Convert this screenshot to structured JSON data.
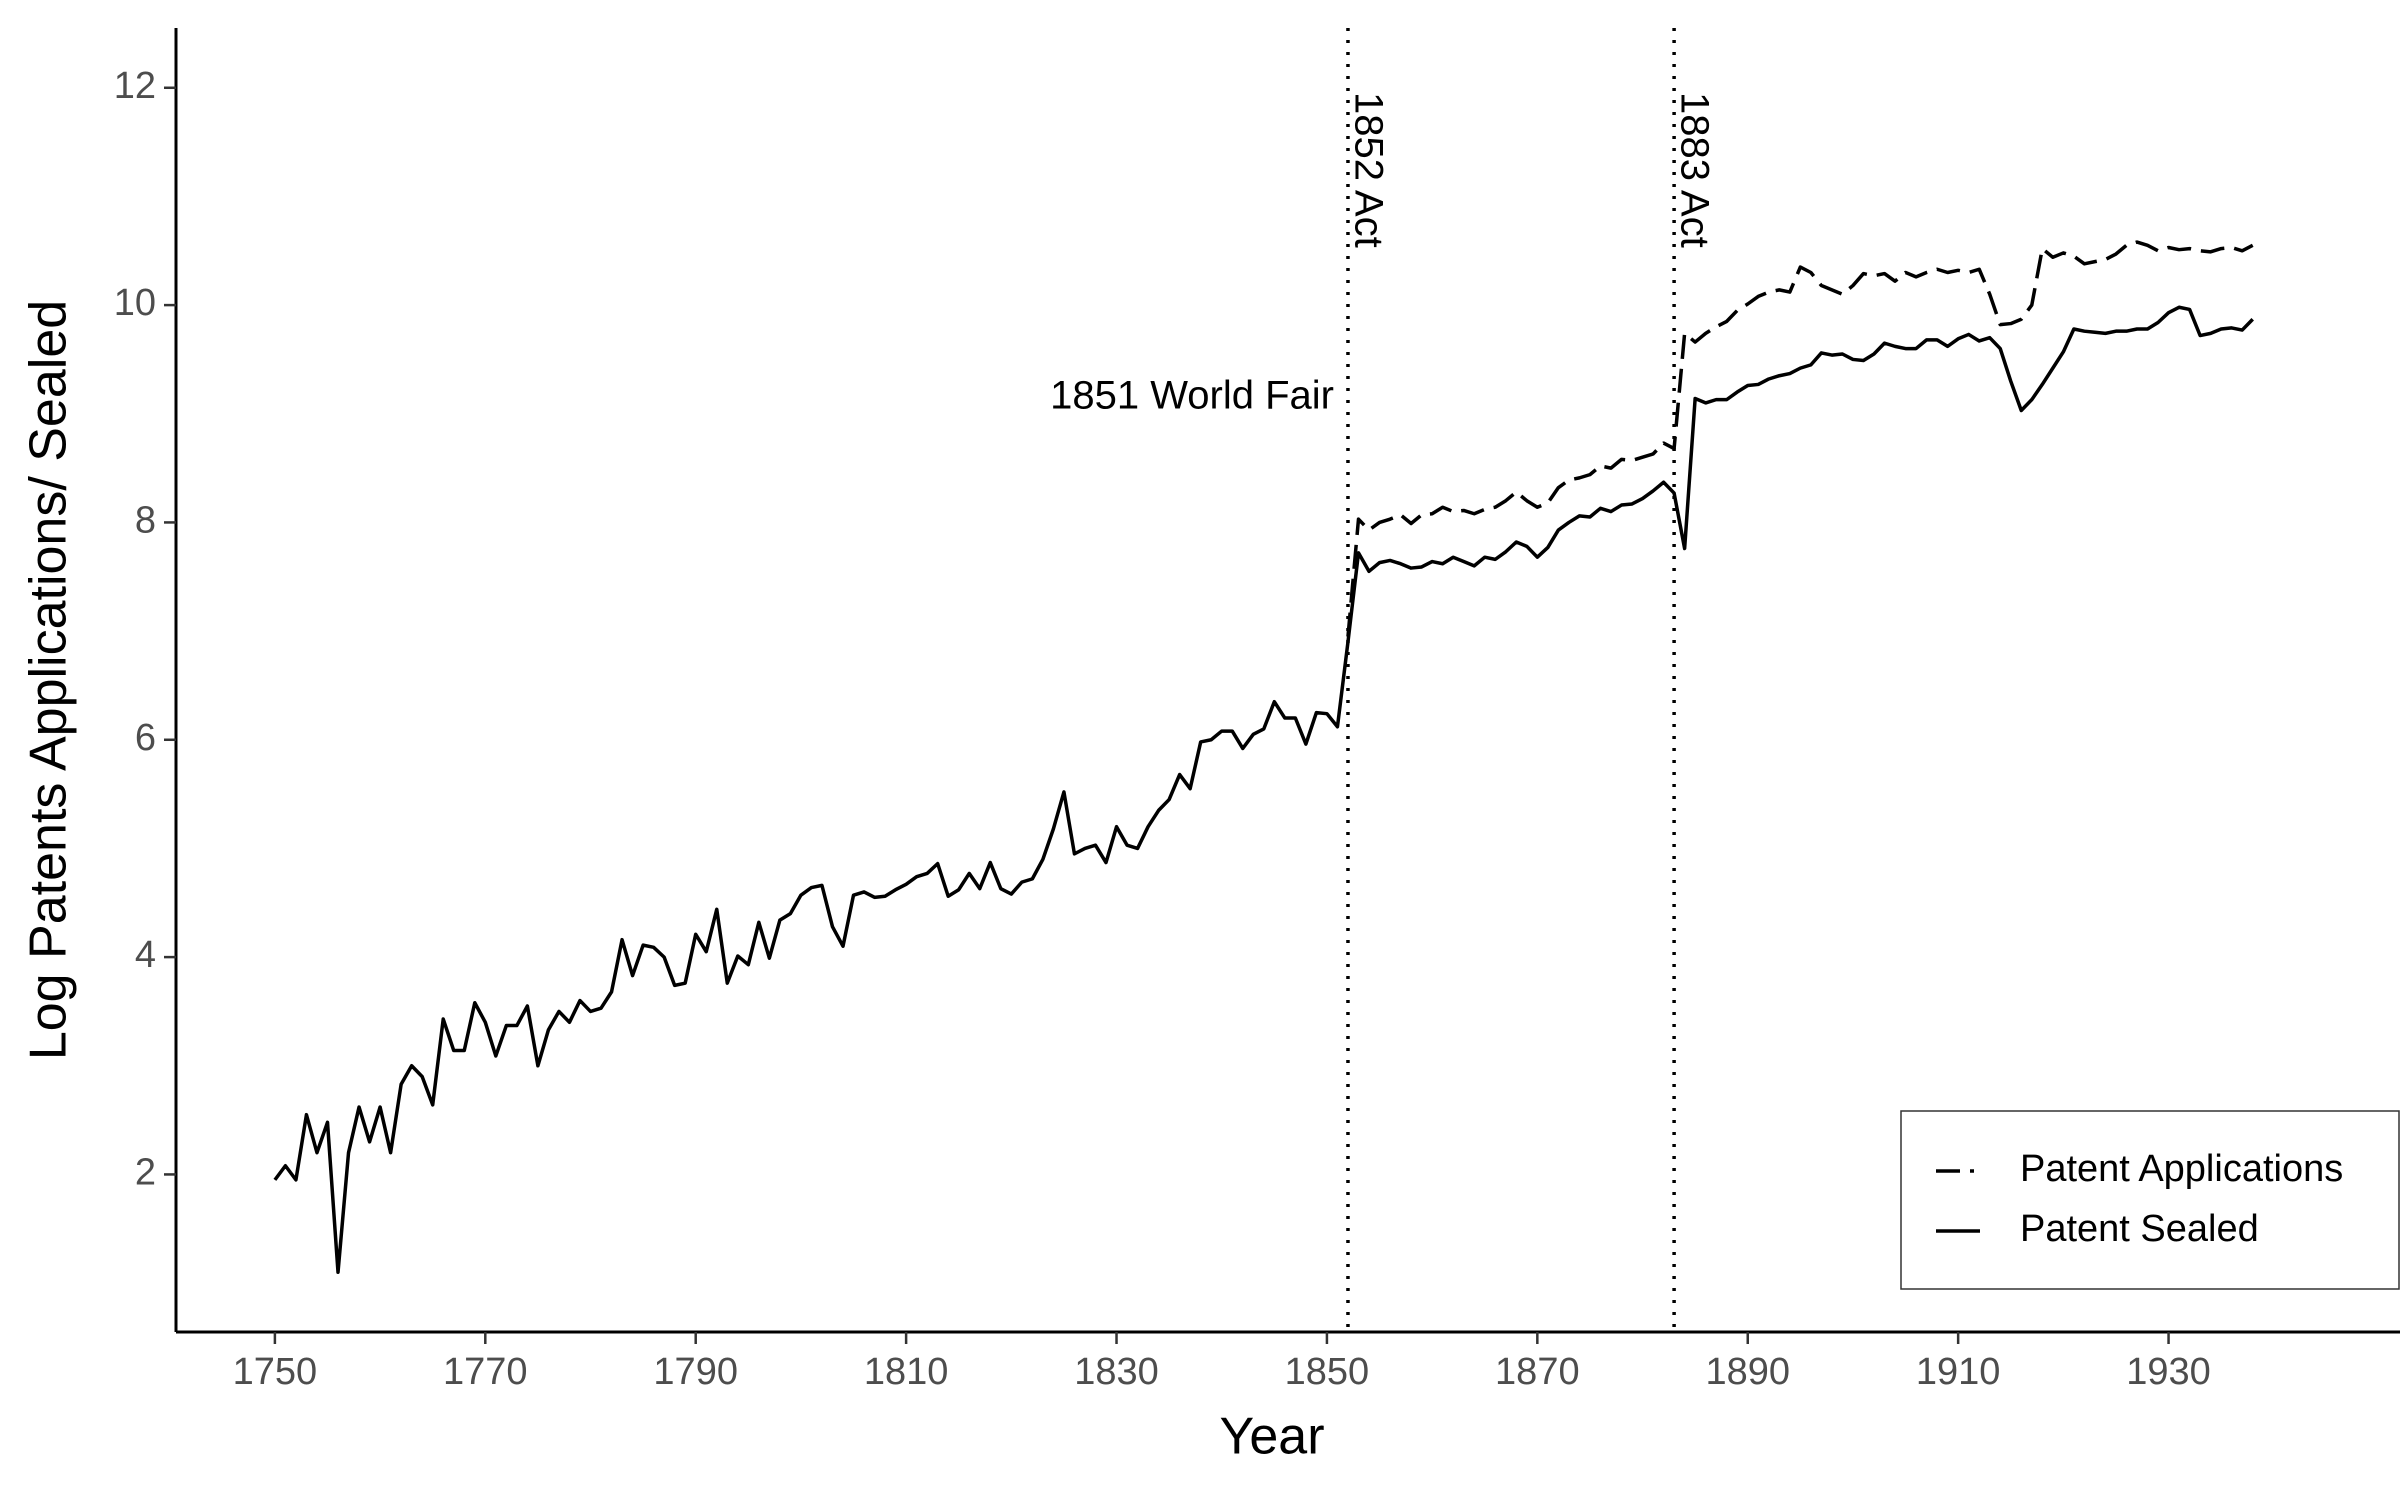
{
  "chart_data": {
    "type": "line",
    "x_label": "Year",
    "y_label": "Log Patents Applications/ Sealed",
    "x": [
      1750,
      1751,
      1752,
      1753,
      1754,
      1755,
      1756,
      1757,
      1758,
      1759,
      1760,
      1761,
      1762,
      1763,
      1764,
      1765,
      1766,
      1767,
      1768,
      1769,
      1770,
      1771,
      1772,
      1773,
      1774,
      1775,
      1776,
      1777,
      1778,
      1779,
      1780,
      1781,
      1782,
      1783,
      1784,
      1785,
      1786,
      1787,
      1788,
      1789,
      1790,
      1791,
      1792,
      1793,
      1794,
      1795,
      1796,
      1797,
      1798,
      1799,
      1800,
      1801,
      1802,
      1803,
      1804,
      1805,
      1806,
      1807,
      1808,
      1809,
      1810,
      1811,
      1812,
      1813,
      1814,
      1815,
      1816,
      1817,
      1818,
      1819,
      1820,
      1821,
      1822,
      1823,
      1824,
      1825,
      1826,
      1827,
      1828,
      1829,
      1830,
      1831,
      1832,
      1833,
      1834,
      1835,
      1836,
      1837,
      1838,
      1839,
      1840,
      1841,
      1842,
      1843,
      1844,
      1845,
      1846,
      1847,
      1848,
      1849,
      1850,
      1851,
      1852,
      1853,
      1854,
      1855,
      1856,
      1857,
      1858,
      1859,
      1860,
      1861,
      1862,
      1863,
      1864,
      1865,
      1866,
      1867,
      1868,
      1869,
      1870,
      1871,
      1872,
      1873,
      1874,
      1875,
      1876,
      1877,
      1878,
      1879,
      1880,
      1881,
      1882,
      1883,
      1884,
      1885,
      1886,
      1887,
      1888,
      1889,
      1890,
      1891,
      1892,
      1893,
      1894,
      1895,
      1896,
      1897,
      1898,
      1899,
      1900,
      1901,
      1902,
      1903,
      1904,
      1905,
      1906,
      1907,
      1908,
      1909,
      1910,
      1911,
      1912,
      1913,
      1914,
      1915,
      1916,
      1917,
      1918,
      1919,
      1920,
      1921,
      1922,
      1923,
      1924,
      1925,
      1926,
      1927,
      1928,
      1929,
      1930,
      1931,
      1932,
      1933,
      1934,
      1935,
      1936,
      1937,
      1938
    ],
    "series": [
      {
        "name": "Patent Applications",
        "color": "#000000",
        "linestyle": "dashed",
        "values": [
          null,
          null,
          null,
          null,
          null,
          null,
          null,
          null,
          null,
          null,
          null,
          null,
          null,
          null,
          null,
          null,
          null,
          null,
          null,
          null,
          null,
          null,
          null,
          null,
          null,
          null,
          null,
          null,
          null,
          null,
          null,
          null,
          null,
          null,
          null,
          null,
          null,
          null,
          null,
          null,
          null,
          null,
          null,
          null,
          null,
          null,
          null,
          null,
          null,
          null,
          null,
          null,
          null,
          null,
          null,
          null,
          null,
          null,
          null,
          null,
          null,
          null,
          null,
          null,
          null,
          null,
          null,
          null,
          null,
          null,
          null,
          null,
          null,
          null,
          null,
          null,
          null,
          null,
          null,
          null,
          null,
          null,
          null,
          null,
          null,
          null,
          null,
          null,
          null,
          null,
          null,
          null,
          null,
          null,
          null,
          null,
          null,
          null,
          null,
          null,
          null,
          null,
          6.95,
          8.03,
          7.93,
          8.0,
          8.03,
          8.07,
          7.99,
          8.07,
          8.08,
          8.14,
          8.1,
          8.11,
          8.08,
          8.12,
          8.14,
          8.2,
          8.28,
          8.2,
          8.14,
          8.18,
          8.32,
          8.39,
          8.41,
          8.44,
          8.52,
          8.5,
          8.58,
          8.57,
          8.6,
          8.63,
          8.73,
          8.68,
          9.74,
          9.66,
          9.74,
          9.8,
          9.85,
          9.95,
          10.01,
          10.08,
          10.12,
          10.14,
          10.12,
          10.35,
          10.3,
          10.18,
          10.14,
          10.1,
          10.18,
          10.29,
          10.27,
          10.29,
          10.22,
          10.3,
          10.26,
          10.3,
          10.33,
          10.3,
          10.32,
          10.3,
          10.33,
          10.1,
          9.82,
          9.83,
          9.87,
          10.0,
          10.52,
          10.44,
          10.48,
          10.45,
          10.38,
          10.4,
          10.42,
          10.47,
          10.55,
          10.58,
          10.55,
          10.5,
          10.53,
          10.51,
          10.52,
          10.5,
          10.49,
          10.52,
          10.53,
          10.5,
          10.55
        ]
      },
      {
        "name": "Patent Sealed",
        "color": "#000000",
        "linestyle": "solid",
        "values": [
          1.95,
          2.08,
          1.95,
          2.55,
          2.2,
          2.48,
          1.1,
          2.2,
          2.62,
          2.3,
          2.62,
          2.2,
          2.83,
          3.0,
          2.9,
          2.64,
          3.43,
          3.14,
          3.14,
          3.58,
          3.4,
          3.09,
          3.37,
          3.37,
          3.55,
          3.0,
          3.33,
          3.5,
          3.4,
          3.6,
          3.5,
          3.53,
          3.68,
          4.16,
          3.83,
          4.11,
          4.09,
          4.0,
          3.74,
          3.76,
          4.21,
          4.05,
          4.44,
          3.76,
          4.01,
          3.93,
          4.32,
          3.99,
          4.34,
          4.4,
          4.57,
          4.64,
          4.66,
          4.28,
          4.1,
          4.57,
          4.6,
          4.55,
          4.56,
          4.62,
          4.67,
          4.74,
          4.77,
          4.86,
          4.56,
          4.62,
          4.77,
          4.63,
          4.87,
          4.63,
          4.58,
          4.69,
          4.72,
          4.9,
          5.18,
          5.52,
          4.95,
          5.0,
          5.03,
          4.87,
          5.2,
          5.03,
          5.0,
          5.2,
          5.35,
          5.45,
          5.68,
          5.55,
          5.98,
          6.0,
          6.08,
          6.08,
          5.92,
          6.05,
          6.1,
          6.35,
          6.2,
          6.2,
          5.96,
          6.25,
          6.24,
          6.12,
          6.9,
          7.72,
          7.55,
          7.63,
          7.65,
          7.62,
          7.58,
          7.59,
          7.64,
          7.62,
          7.68,
          7.64,
          7.6,
          7.68,
          7.66,
          7.73,
          7.82,
          7.78,
          7.68,
          7.77,
          7.93,
          8.0,
          8.06,
          8.05,
          8.13,
          8.1,
          8.16,
          8.17,
          8.22,
          8.29,
          8.37,
          8.27,
          7.76,
          9.14,
          9.1,
          9.13,
          9.13,
          9.2,
          9.26,
          9.27,
          9.32,
          9.35,
          9.37,
          9.42,
          9.45,
          9.56,
          9.54,
          9.55,
          9.5,
          9.49,
          9.55,
          9.65,
          9.62,
          9.6,
          9.6,
          9.68,
          9.68,
          9.62,
          9.69,
          9.73,
          9.67,
          9.7,
          9.6,
          9.3,
          9.03,
          9.13,
          9.27,
          9.42,
          9.57,
          9.78,
          9.76,
          9.75,
          9.74,
          9.76,
          9.76,
          9.78,
          9.78,
          9.84,
          9.93,
          9.98,
          9.96,
          9.72,
          9.74,
          9.78,
          9.79,
          9.77,
          9.87
        ]
      }
    ],
    "vlines": [
      {
        "x": 1852,
        "label": "1852 Act"
      },
      {
        "x": 1883,
        "label": "1883 Act"
      }
    ],
    "annotation": "1851 World Fair",
    "xlim": [
      1740.6,
      1952
    ],
    "ylim": [
      0.55,
      12.55
    ],
    "xticks": [
      1750,
      1770,
      1790,
      1810,
      1830,
      1850,
      1870,
      1890,
      1910,
      1930
    ],
    "yticks": [
      2,
      4,
      6,
      8,
      10,
      12
    ],
    "grid": false,
    "legend_position": "bottom-right"
  }
}
